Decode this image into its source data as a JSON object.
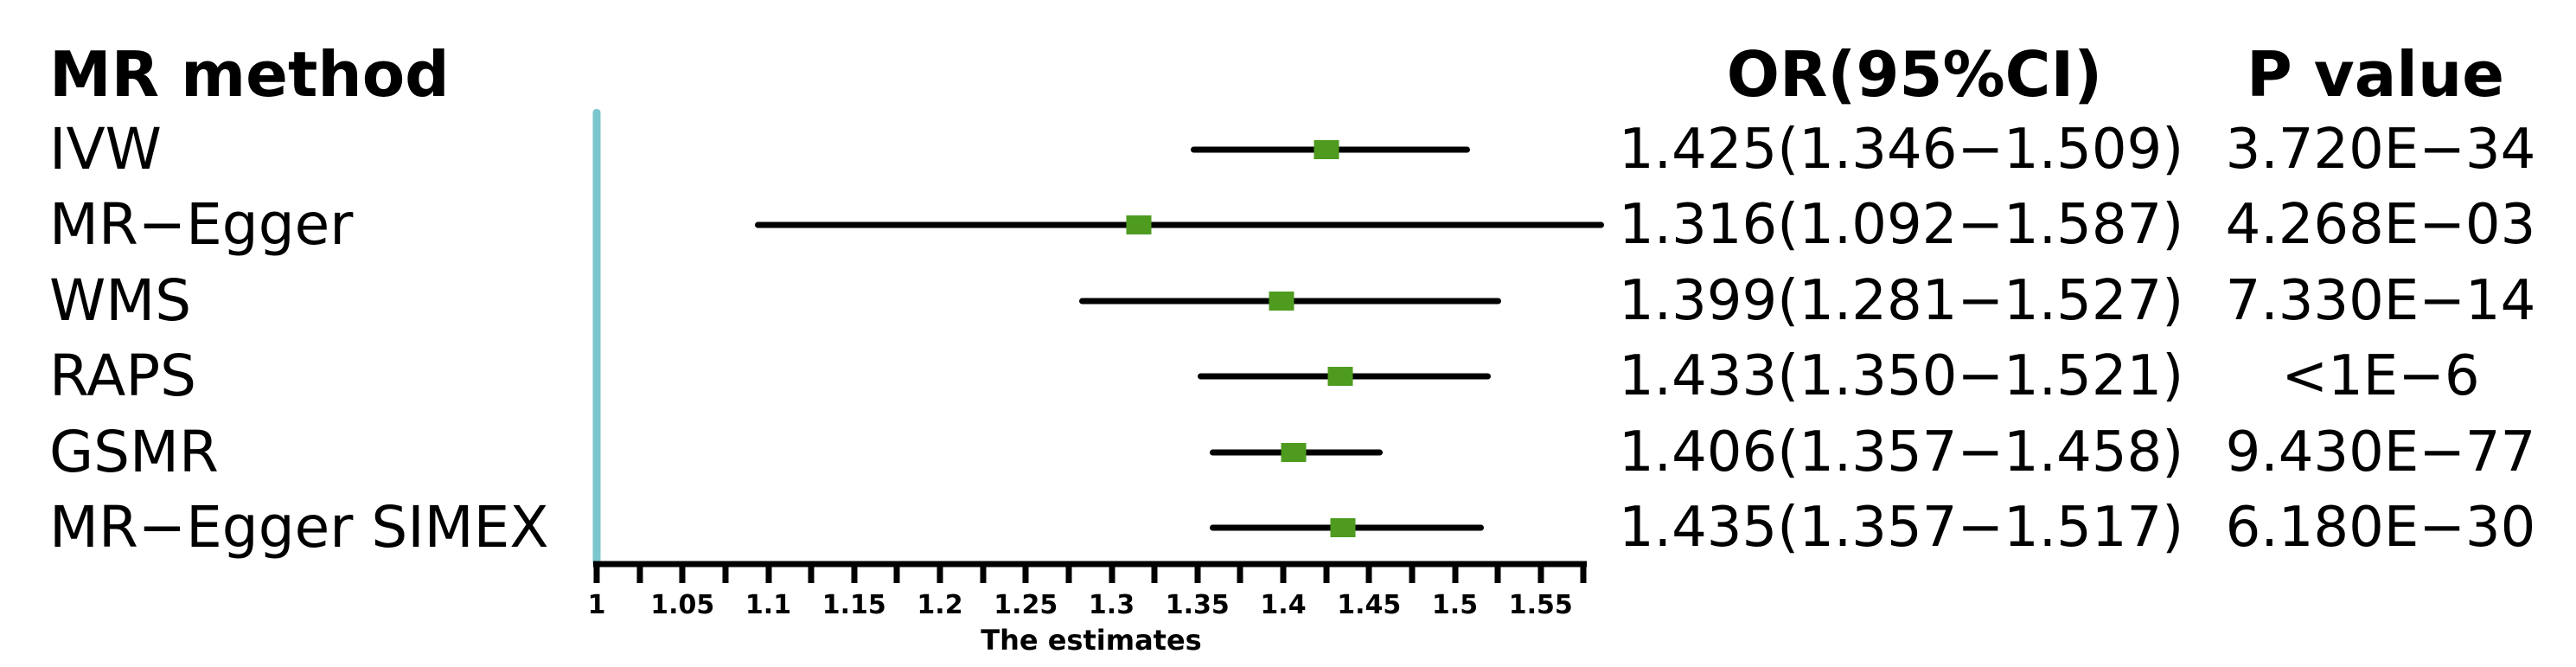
{
  "header": {
    "method_label": "MR method",
    "or_label": "OR(95%CI)",
    "p_label": "P value"
  },
  "colors": {
    "marker_green": "#4e9b1f",
    "refline_cyan": "#7cc6cf",
    "line_black": "#000000",
    "background": "#ffffff"
  },
  "chart_data": {
    "type": "forest",
    "title": "",
    "xlabel": "The estimates",
    "xlim": [
      1,
      1.575
    ],
    "refline": 1,
    "grid": false,
    "minor_tick_step": 0.025,
    "labeled_ticks": [
      {
        "v": 1.0,
        "label": "1"
      },
      {
        "v": 1.05,
        "label": "1.05"
      },
      {
        "v": 1.1,
        "label": "1.1"
      },
      {
        "v": 1.15,
        "label": "1.15"
      },
      {
        "v": 1.2,
        "label": "1.2"
      },
      {
        "v": 1.25,
        "label": "1.25"
      },
      {
        "v": 1.3,
        "label": "1.3"
      },
      {
        "v": 1.35,
        "label": "1.35"
      },
      {
        "v": 1.4,
        "label": "1.4"
      },
      {
        "v": 1.45,
        "label": "1.45"
      },
      {
        "v": 1.5,
        "label": "1.5"
      },
      {
        "v": 1.55,
        "label": "1.55"
      }
    ],
    "rows": [
      {
        "method": "IVW",
        "or": 1.425,
        "ci_low": 1.346,
        "ci_high": 1.509,
        "or_ci_text": "1.425(1.346−1.509)",
        "p_text": "3.720E−34"
      },
      {
        "method": "MR−Egger",
        "or": 1.316,
        "ci_low": 1.092,
        "ci_high": 1.587,
        "or_ci_text": "1.316(1.092−1.587)",
        "p_text": "4.268E−03"
      },
      {
        "method": "WMS",
        "or": 1.399,
        "ci_low": 1.281,
        "ci_high": 1.527,
        "or_ci_text": "1.399(1.281−1.527)",
        "p_text": "7.330E−14"
      },
      {
        "method": "RAPS",
        "or": 1.433,
        "ci_low": 1.35,
        "ci_high": 1.521,
        "or_ci_text": "1.433(1.350−1.521)",
        "p_text": "<1E−6"
      },
      {
        "method": "GSMR",
        "or": 1.406,
        "ci_low": 1.357,
        "ci_high": 1.458,
        "or_ci_text": "1.406(1.357−1.458)",
        "p_text": "9.430E−77"
      },
      {
        "method": "MR−Egger SIMEX",
        "or": 1.435,
        "ci_low": 1.357,
        "ci_high": 1.517,
        "or_ci_text": "1.435(1.357−1.517)",
        "p_text": "6.180E−30"
      }
    ]
  }
}
